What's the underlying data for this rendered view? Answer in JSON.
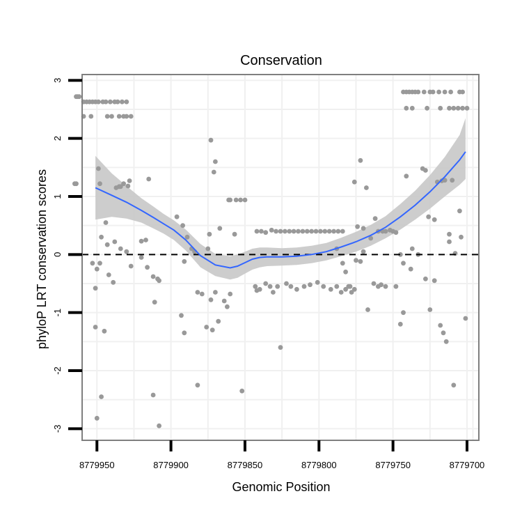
{
  "chart_data": {
    "type": "scatter",
    "title": "Conservation",
    "xlabel": "Genomic Position",
    "ylabel": "phyloP LRT conservation scores",
    "xlim": [
      8779960,
      8779692
    ],
    "ylim": [
      -3.2,
      3.1
    ],
    "x_reversed": true,
    "grid": true,
    "x_ticks": [
      8779950,
      8779900,
      8779850,
      8779800,
      8779750,
      8779700
    ],
    "x_tick_labels": [
      "8779950",
      "8779900",
      "8779850",
      "8779800",
      "8779750",
      "8779700"
    ],
    "y_ticks": [
      3,
      2,
      1,
      0,
      -1,
      -2,
      -3
    ],
    "y_tick_labels": [
      "3",
      "2",
      "1",
      "0",
      "-1",
      "-2",
      "-3"
    ],
    "reference_line": {
      "y": 0,
      "style": "dashed",
      "color": "#000000"
    },
    "colors": {
      "points": "#999999",
      "smooth": "#3366ff",
      "ribbon": "#c8c8c8",
      "grid": "#f0f0f0",
      "border": "#7f7f7f"
    },
    "points": [
      [
        8779964,
        2.72
      ],
      [
        8779963,
        2.72
      ],
      [
        8779962,
        2.72
      ],
      [
        8779959,
        2.63
      ],
      [
        8779957,
        2.63
      ],
      [
        8779955,
        2.63
      ],
      [
        8779953,
        2.63
      ],
      [
        8779951,
        2.63
      ],
      [
        8779949,
        2.63
      ],
      [
        8779946,
        2.63
      ],
      [
        8779944,
        2.63
      ],
      [
        8779941,
        2.63
      ],
      [
        8779938,
        2.63
      ],
      [
        8779936,
        2.63
      ],
      [
        8779933,
        2.63
      ],
      [
        8779930,
        2.63
      ],
      [
        8779959,
        2.38
      ],
      [
        8779954,
        2.38
      ],
      [
        8779943,
        2.38
      ],
      [
        8779940,
        2.38
      ],
      [
        8779935,
        2.38
      ],
      [
        8779932,
        2.38
      ],
      [
        8779930,
        2.38
      ],
      [
        8779927,
        2.38
      ],
      [
        8779949,
        1.48
      ],
      [
        8779948,
        1.22
      ],
      [
        8779965,
        1.22
      ],
      [
        8779964,
        1.22
      ],
      [
        8779937,
        1.15
      ],
      [
        8779935,
        1.17
      ],
      [
        8779934,
        1.17
      ],
      [
        8779932,
        1.22
      ],
      [
        8779929,
        1.18
      ],
      [
        8779928,
        1.27
      ],
      [
        8779915,
        1.3
      ],
      [
        8779944,
        0.55
      ],
      [
        8779947,
        0.3
      ],
      [
        8779938,
        0.22
      ],
      [
        8779943,
        0.17
      ],
      [
        8779934,
        0.1
      ],
      [
        8779930,
        0.05
      ],
      [
        8779920,
        0.23
      ],
      [
        8779917,
        0.25
      ],
      [
        8779896,
        0.65
      ],
      [
        8779892,
        0.5
      ],
      [
        8779889,
        0.3
      ],
      [
        8779886,
        0.1
      ],
      [
        8779884,
        0.05
      ],
      [
        8779950,
        -0.25
      ],
      [
        8779951,
        -0.58
      ],
      [
        8779951,
        -1.25
      ],
      [
        8779945,
        -1.32
      ],
      [
        8779953,
        -0.15
      ],
      [
        8779948,
        -0.15
      ],
      [
        8779942,
        -0.35
      ],
      [
        8779939,
        -0.48
      ],
      [
        8779927,
        -0.2
      ],
      [
        8779920,
        -0.05
      ],
      [
        8779916,
        -0.22
      ],
      [
        8779909,
        -0.42
      ],
      [
        8779908,
        -0.45
      ],
      [
        8779912,
        -0.38
      ],
      [
        8779911,
        -0.82
      ],
      [
        8779947,
        -2.45
      ],
      [
        8779950,
        -2.82
      ],
      [
        8779912,
        -2.42
      ],
      [
        8779908,
        -2.95
      ],
      [
        8779891,
        -0.12
      ],
      [
        8779893,
        -1.05
      ],
      [
        8779891,
        -1.35
      ],
      [
        8779882,
        -2.25
      ],
      [
        8779882,
        -0.65
      ],
      [
        8779879,
        -0.68
      ],
      [
        8779876,
        -1.25
      ],
      [
        8779873,
        -0.78
      ],
      [
        8779872,
        -1.3
      ],
      [
        8779870,
        -0.65
      ],
      [
        8779868,
        -1.15
      ],
      [
        8779862,
        -0.9
      ],
      [
        8779864,
        -0.8
      ],
      [
        8779860,
        -0.68
      ],
      [
        8779874,
        0.35
      ],
      [
        8779875,
        0.1
      ],
      [
        8779873,
        1.97
      ],
      [
        8779870,
        1.6
      ],
      [
        8779871,
        1.42
      ],
      [
        8779867,
        0.45
      ],
      [
        8779861,
        0.94
      ],
      [
        8779860,
        0.94
      ],
      [
        8779856,
        0.94
      ],
      [
        8779853,
        0.94
      ],
      [
        8779850,
        0.94
      ],
      [
        8779857,
        0.35
      ],
      [
        8779852,
        -2.35
      ],
      [
        8779843,
        -0.55
      ],
      [
        8779842,
        -0.62
      ],
      [
        8779840,
        -0.6
      ],
      [
        8779836,
        -0.5
      ],
      [
        8779833,
        -0.55
      ],
      [
        8779831,
        -0.65
      ],
      [
        8779828,
        -0.55
      ],
      [
        8779826,
        -1.6
      ],
      [
        8779822,
        -0.5
      ],
      [
        8779819,
        -0.55
      ],
      [
        8779815,
        -0.6
      ],
      [
        8779810,
        -0.55
      ],
      [
        8779806,
        -0.52
      ],
      [
        8779801,
        -0.48
      ],
      [
        8779797,
        -0.55
      ],
      [
        8779792,
        -0.6
      ],
      [
        8779788,
        -0.55
      ],
      [
        8779785,
        -0.65
      ],
      [
        8779782,
        -0.6
      ],
      [
        8779780,
        -0.55
      ],
      [
        8779778,
        -0.65
      ],
      [
        8779776,
        -0.6
      ],
      [
        8779842,
        0.4
      ],
      [
        8779839,
        0.4
      ],
      [
        8779836,
        0.38
      ],
      [
        8779832,
        0.42
      ],
      [
        8779829,
        0.4
      ],
      [
        8779826,
        0.4
      ],
      [
        8779823,
        0.4
      ],
      [
        8779820,
        0.4
      ],
      [
        8779817,
        0.4
      ],
      [
        8779814,
        0.4
      ],
      [
        8779811,
        0.4
      ],
      [
        8779808,
        0.4
      ],
      [
        8779805,
        0.4
      ],
      [
        8779802,
        0.4
      ],
      [
        8779799,
        0.4
      ],
      [
        8779796,
        0.4
      ],
      [
        8779793,
        0.4
      ],
      [
        8779790,
        0.4
      ],
      [
        8779787,
        0.4
      ],
      [
        8779784,
        0.4
      ],
      [
        8779788,
        0.1
      ],
      [
        8779784,
        -0.15
      ],
      [
        8779782,
        -0.3
      ],
      [
        8779779,
        -0.55
      ],
      [
        8779775,
        -0.1
      ],
      [
        8779772,
        -0.12
      ],
      [
        8779770,
        0.05
      ],
      [
        8779776,
        1.25
      ],
      [
        8779774,
        0.48
      ],
      [
        8779772,
        1.62
      ],
      [
        8779770,
        0.45
      ],
      [
        8779768,
        1.15
      ],
      [
        8779765,
        0.28
      ],
      [
        8779762,
        0.62
      ],
      [
        8779760,
        0.4
      ],
      [
        8779757,
        0.4
      ],
      [
        8779755,
        0.4
      ],
      [
        8779752,
        0.42
      ],
      [
        8779750,
        0.4
      ],
      [
        8779748,
        0.38
      ],
      [
        8779767,
        -0.95
      ],
      [
        8779763,
        -0.5
      ],
      [
        8779760,
        -0.55
      ],
      [
        8779758,
        -0.52
      ],
      [
        8779755,
        -0.55
      ],
      [
        8779748,
        -0.55
      ],
      [
        8779745,
        -1.2
      ],
      [
        8779743,
        -1.0
      ],
      [
        8779745,
        0.0
      ],
      [
        8779743,
        -0.15
      ],
      [
        8779741,
        1.35
      ],
      [
        8779738,
        -0.25
      ],
      [
        8779737,
        0.1
      ],
      [
        8779733,
        0.0
      ],
      [
        8779730,
        1.48
      ],
      [
        8779728,
        -0.42
      ],
      [
        8779728,
        1.45
      ],
      [
        8779726,
        0.65
      ],
      [
        8779725,
        -0.95
      ],
      [
        8779722,
        0.6
      ],
      [
        8779722,
        -0.45
      ],
      [
        8779720,
        1.25
      ],
      [
        8779718,
        -1.22
      ],
      [
        8779717,
        1.27
      ],
      [
        8779716,
        -1.35
      ],
      [
        8779714,
        -1.5
      ],
      [
        8779715,
        1.28
      ],
      [
        8779712,
        0.22
      ],
      [
        8779712,
        0.35
      ],
      [
        8779710,
        1.28
      ],
      [
        8779709,
        -2.25
      ],
      [
        8779708,
        0.02
      ],
      [
        8779705,
        0.75
      ],
      [
        8779704,
        0.3
      ],
      [
        8779701,
        -1.1
      ],
      [
        8779743,
        2.8
      ],
      [
        8779741,
        2.8
      ],
      [
        8779739,
        2.8
      ],
      [
        8779737,
        2.8
      ],
      [
        8779735,
        2.8
      ],
      [
        8779733,
        2.8
      ],
      [
        8779729,
        2.8
      ],
      [
        8779725,
        2.8
      ],
      [
        8779723,
        2.8
      ],
      [
        8779719,
        2.8
      ],
      [
        8779715,
        2.8
      ],
      [
        8779711,
        2.8
      ],
      [
        8779705,
        2.8
      ],
      [
        8779703,
        2.8
      ],
      [
        8779741,
        2.52
      ],
      [
        8779737,
        2.52
      ],
      [
        8779727,
        2.52
      ],
      [
        8779718,
        2.52
      ],
      [
        8779712,
        2.52
      ],
      [
        8779709,
        2.52
      ],
      [
        8779706,
        2.52
      ],
      [
        8779703,
        2.52
      ],
      [
        8779700,
        2.52
      ]
    ],
    "smooth": {
      "x": [
        8779951,
        8779940,
        8779930,
        8779920,
        8779912,
        8779905,
        8779898,
        8779890,
        8779880,
        8779870,
        8779860,
        8779855,
        8779850,
        8779845,
        8779840,
        8779835,
        8779825,
        8779815,
        8779805,
        8779795,
        8779785,
        8779775,
        8779765,
        8779755,
        8779745,
        8779735,
        8779725,
        8779715,
        8779705,
        8779701
      ],
      "y": [
        1.15,
        1.02,
        0.9,
        0.76,
        0.64,
        0.53,
        0.42,
        0.25,
        -0.02,
        -0.18,
        -0.23,
        -0.2,
        -0.14,
        -0.08,
        -0.05,
        -0.04,
        -0.04,
        -0.03,
        0.0,
        0.05,
        0.13,
        0.22,
        0.33,
        0.47,
        0.65,
        0.85,
        1.08,
        1.34,
        1.63,
        1.77
      ],
      "lower": [
        0.6,
        0.65,
        0.62,
        0.55,
        0.45,
        0.36,
        0.25,
        0.07,
        -0.22,
        -0.37,
        -0.43,
        -0.4,
        -0.33,
        -0.26,
        -0.22,
        -0.2,
        -0.19,
        -0.18,
        -0.15,
        -0.1,
        -0.03,
        0.05,
        0.15,
        0.28,
        0.43,
        0.6,
        0.79,
        1.0,
        1.2,
        1.3
      ],
      "upper": [
        1.7,
        1.4,
        1.18,
        0.97,
        0.83,
        0.7,
        0.59,
        0.43,
        0.18,
        0.01,
        -0.03,
        0.0,
        0.05,
        0.1,
        0.12,
        0.12,
        0.11,
        0.12,
        0.15,
        0.2,
        0.29,
        0.39,
        0.51,
        0.66,
        0.87,
        1.1,
        1.37,
        1.68,
        2.06,
        2.35
      ]
    }
  }
}
